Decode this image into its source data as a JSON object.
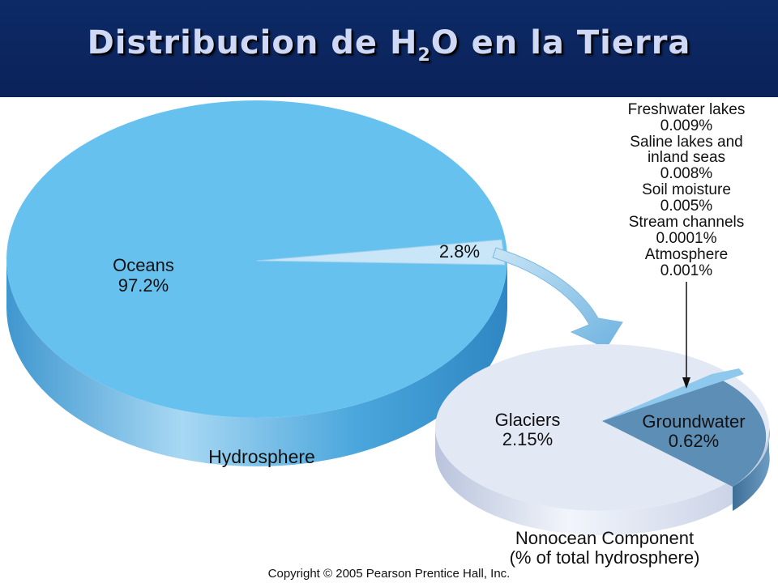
{
  "header": {
    "title_pre": "Distribucion de H",
    "title_sub": "2",
    "title_post": "O en la Tierra"
  },
  "chart_data": [
    {
      "type": "pie",
      "title": "Hydrosphere",
      "slices": [
        {
          "label": "Oceans",
          "value_label": "97.2%",
          "value": 97.2
        },
        {
          "label": "",
          "value_label": "2.8%",
          "value": 2.8
        }
      ]
    },
    {
      "type": "pie",
      "title": "Nonocean Component",
      "subtitle": "(% of total hydrosphere)",
      "slices": [
        {
          "label": "Glaciers",
          "value_label": "2.15%",
          "value": 2.15
        },
        {
          "label": "Groundwater",
          "value_label": "0.62%",
          "value": 0.62
        },
        {
          "label": "Freshwater lakes",
          "value_label": "0.009%",
          "value": 0.009
        },
        {
          "label": "Saline lakes and inland seas",
          "value_label": "0.008%",
          "value": 0.008
        },
        {
          "label": "Soil moisture",
          "value_label": "0.005%",
          "value": 0.005
        },
        {
          "label": "Stream channels",
          "value_label": "0.0001%",
          "value": 0.0001
        },
        {
          "label": "Atmosphere",
          "value_label": "0.001%",
          "value": 0.001
        }
      ]
    }
  ],
  "callout": {
    "lines": [
      "Freshwater lakes",
      "0.009%",
      "Saline lakes and",
      "inland seas",
      "0.008%",
      "Soil moisture",
      "0.005%",
      "Stream channels",
      "0.0001%",
      "Atmosphere",
      "0.001%"
    ]
  },
  "colors": {
    "ocean_top": "#67c1ef",
    "ocean_side": "#4aa6dc",
    "nonocean_top": "#e3e8f5",
    "groundwater": "#5d8eb5",
    "arrow": "#8ec4e6",
    "title_bg": "#0b225a"
  },
  "footer": {
    "copyright": "Copyright © 2005 Pearson Prentice Hall, Inc."
  }
}
